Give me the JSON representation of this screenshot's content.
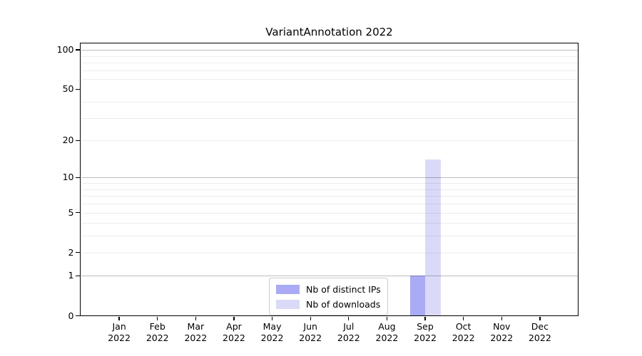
{
  "figure": {
    "background": "#ffffff",
    "axis_color": "#000000",
    "text_color": "#000000"
  },
  "chart_data": {
    "type": "bar",
    "title": "VariantAnnotation 2022",
    "xlabel": "",
    "ylabel": "",
    "categories": [
      "Jan",
      "Feb",
      "Mar",
      "Apr",
      "May",
      "Jun",
      "Jul",
      "Aug",
      "Sep",
      "Oct",
      "Nov",
      "Dec"
    ],
    "year_label": "2022",
    "series": [
      {
        "name": "Nb of distinct IPs",
        "color": "#aaaaf5",
        "values": [
          0,
          0,
          0,
          0,
          0,
          0,
          0,
          0,
          1,
          0,
          0,
          0
        ]
      },
      {
        "name": "Nb of downloads",
        "color": "#dadaf8",
        "values": [
          0,
          0,
          0,
          0,
          0,
          0,
          0,
          0,
          14,
          0,
          0,
          0
        ]
      }
    ],
    "scale": "log1p",
    "ylim": [
      0,
      112
    ],
    "yticks": [
      0,
      1,
      2,
      5,
      10,
      20,
      50,
      100
    ],
    "grid": {
      "on": true,
      "major_lines": [
        1,
        10,
        100
      ],
      "minor_lines": [
        2,
        3,
        4,
        5,
        6,
        7,
        8,
        9,
        20,
        30,
        40,
        60,
        70,
        80,
        90
      ]
    },
    "legend_position": "lower center"
  }
}
